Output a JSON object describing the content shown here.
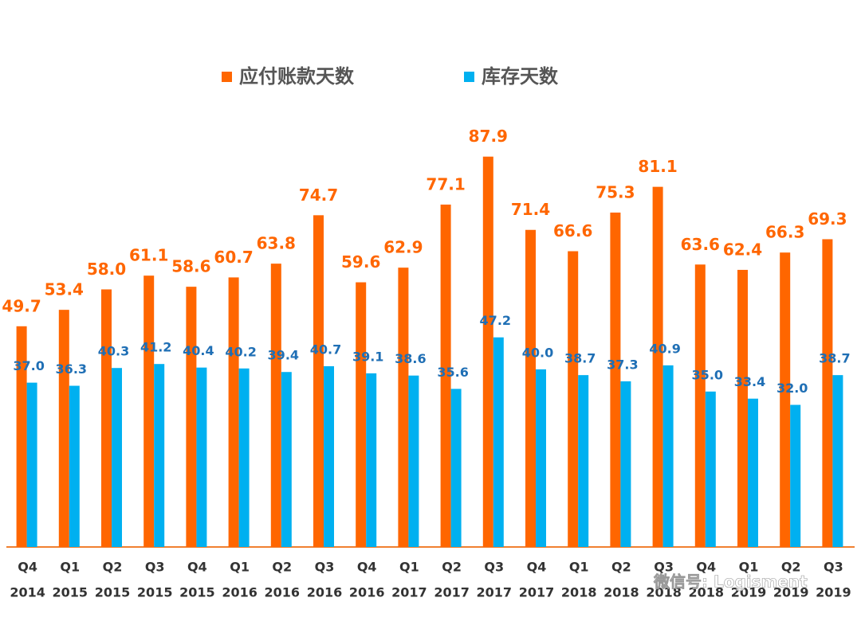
{
  "chart_data": {
    "type": "bar",
    "categories": [
      [
        "Q4",
        "2014"
      ],
      [
        "Q1",
        "2015"
      ],
      [
        "Q2",
        "2015"
      ],
      [
        "Q3",
        "2015"
      ],
      [
        "Q4",
        "2015"
      ],
      [
        "Q1",
        "2016"
      ],
      [
        "Q2",
        "2016"
      ],
      [
        "Q3",
        "2016"
      ],
      [
        "Q4",
        "2016"
      ],
      [
        "Q1",
        "2017"
      ],
      [
        "Q2",
        "2017"
      ],
      [
        "Q3",
        "2017"
      ],
      [
        "Q4",
        "2017"
      ],
      [
        "Q1",
        "2018"
      ],
      [
        "Q2",
        "2018"
      ],
      [
        "Q3",
        "2018"
      ],
      [
        "Q4",
        "2018"
      ],
      [
        "Q1",
        "2019"
      ],
      [
        "Q2",
        "2019"
      ],
      [
        "Q3",
        "2019"
      ]
    ],
    "series": [
      {
        "name": "应付账款天数",
        "color": "#ff6600",
        "label_color": "#ff6600",
        "values": [
          49.7,
          53.4,
          58.0,
          61.1,
          58.6,
          60.7,
          63.8,
          74.7,
          59.6,
          62.9,
          77.1,
          87.9,
          71.4,
          66.6,
          75.3,
          81.1,
          63.6,
          62.4,
          66.3,
          69.3
        ],
        "value_labels": [
          "49.7",
          "53.4",
          "58.0",
          "61.1",
          "58.6",
          "60.7",
          "63.8",
          "74.7",
          "59.6",
          "62.9",
          "77.1",
          "87.9",
          "71.4",
          "66.6",
          "75.3",
          "81.1",
          "63.6",
          "62.4",
          "66.3",
          "69.3"
        ]
      },
      {
        "name": "库存天数",
        "color": "#00b0f0",
        "label_color": "#1f6fb5",
        "values": [
          37.0,
          36.3,
          40.3,
          41.2,
          40.4,
          40.2,
          39.4,
          40.7,
          39.1,
          38.6,
          35.6,
          47.2,
          40.0,
          38.7,
          37.3,
          40.9,
          35.0,
          33.4,
          32.0,
          38.7
        ],
        "value_labels": [
          "37.0",
          "36.3",
          "40.3",
          "41.2",
          "40.4",
          "40.2",
          "39.4",
          "40.7",
          "39.1",
          "38.6",
          "35.6",
          "47.2",
          "40.0",
          "38.7",
          "37.3",
          "40.9",
          "35.0",
          "33.4",
          "32.0",
          "38.7"
        ]
      }
    ],
    "ylim": [
      0,
      90
    ],
    "watermark": "微信号: Logisment"
  }
}
